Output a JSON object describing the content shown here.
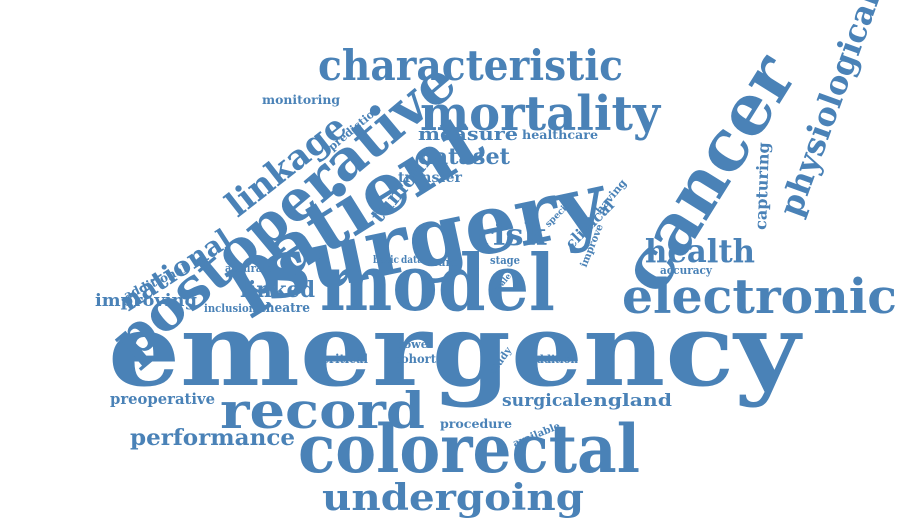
{
  "word_color": "#4a82b7",
  "background": "#ffffff",
  "words": {
    "emergency": "emergency",
    "surgery": "surgery",
    "model": "model",
    "patient": "patient",
    "cancer": "cancer",
    "colorectal": "colorectal",
    "postoperative": "postoperative",
    "record": "record",
    "electronic": "electronic",
    "mortality": "mortality",
    "characteristic": "characteristic",
    "undergoing": "undergoing",
    "physiological": "physiological",
    "linkage": "linkage",
    "health": "health",
    "national": "national",
    "performance": "performance",
    "risk": "risk",
    "dataset": "dataset",
    "measure": "measure",
    "tumour": "tumour",
    "linked": "linked",
    "improving": "improving",
    "preoperative": "preoperative",
    "surgical": "surgical",
    "england": "england",
    "capturing": "capturing",
    "monitoring": "monitoring",
    "prediction": "prediction",
    "healthcare": "healthcare",
    "transfer": "transfer",
    "additional": "additional",
    "accurate": "accurate",
    "inclusion": "inclusion",
    "theatre": "theatre",
    "basic": "basic",
    "data": "data",
    "care": "care",
    "stage": "stage",
    "clinical": "clinical",
    "specific": "specific",
    "having": "having",
    "improve": "improve",
    "accuracy": "accuracy",
    "wale": "wale",
    "critical": "critical",
    "bowel": "bowel",
    "cohort": "cohort",
    "study": "study",
    "addition": "addition",
    "procedure": "procedure",
    "available": "available"
  }
}
